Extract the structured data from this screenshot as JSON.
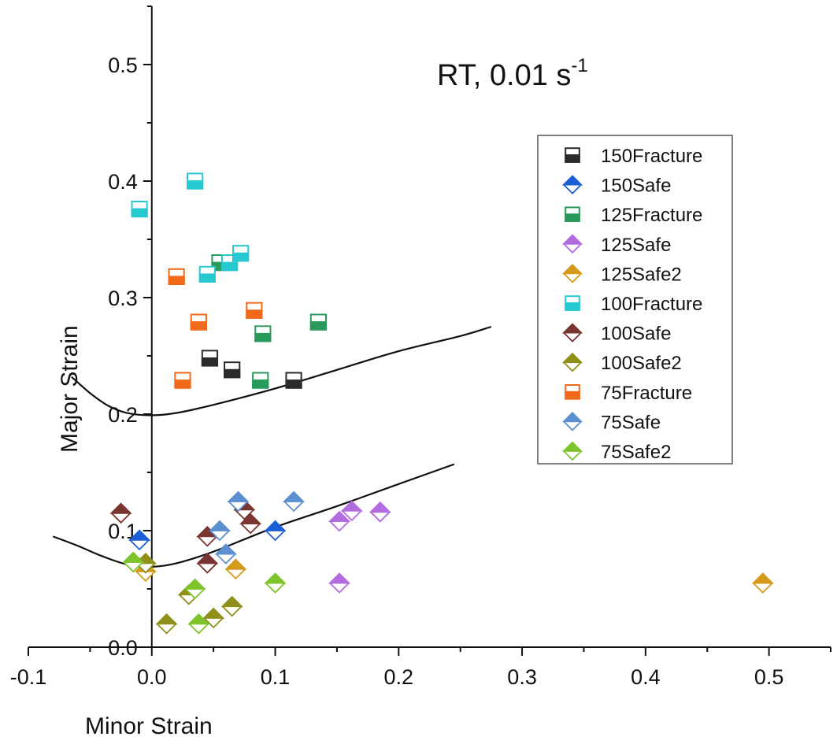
{
  "chart_data": {
    "type": "scatter",
    "title": "RT, 0.01 s",
    "title_superscript": "-1",
    "xlabel": "Minor Strain",
    "ylabel": "Major Strain",
    "xlim": [
      -0.1,
      0.55
    ],
    "ylim": [
      0.0,
      0.55
    ],
    "x_ticks": [
      -0.1,
      0.0,
      0.1,
      0.2,
      0.3,
      0.4,
      0.5
    ],
    "x_tick_labels": [
      "-0.1",
      "0.0",
      "0.1",
      "0.2",
      "0.3",
      "0.4",
      "0.5"
    ],
    "y_ticks": [
      0.0,
      0.1,
      0.2,
      0.3,
      0.4,
      0.5
    ],
    "y_tick_labels": [
      "0.0",
      "0.1",
      "0.2",
      "0.3",
      "0.4",
      "0.5"
    ],
    "grid": false,
    "legend_position": "right",
    "series": [
      {
        "name": "150Fracture",
        "marker": "square",
        "color": "#2b2b2b",
        "points": [
          [
            0.047,
            0.248
          ],
          [
            0.065,
            0.238
          ],
          [
            0.115,
            0.229
          ]
        ]
      },
      {
        "name": "150Safe",
        "marker": "triangle",
        "color": "#1a5fd6",
        "points": [
          [
            -0.01,
            0.092
          ],
          [
            0.1,
            0.1
          ]
        ]
      },
      {
        "name": "125Fracture",
        "marker": "square",
        "color": "#2a9a5c",
        "points": [
          [
            0.055,
            0.33
          ],
          [
            0.09,
            0.269
          ],
          [
            0.088,
            0.229
          ],
          [
            0.135,
            0.279
          ]
        ]
      },
      {
        "name": "125Safe",
        "marker": "diamond",
        "color": "#b36be0",
        "points": [
          [
            0.152,
            0.108
          ],
          [
            0.162,
            0.117
          ],
          [
            0.185,
            0.116
          ],
          [
            0.152,
            0.055
          ]
        ]
      },
      {
        "name": "125Safe2",
        "marker": "diamond",
        "color": "#d69a1a",
        "points": [
          [
            -0.005,
            0.065
          ],
          [
            0.068,
            0.067
          ],
          [
            0.495,
            0.055
          ]
        ]
      },
      {
        "name": "100Fracture",
        "marker": "square",
        "color": "#27c9d1",
        "points": [
          [
            -0.01,
            0.376
          ],
          [
            0.035,
            0.4
          ],
          [
            0.045,
            0.32
          ],
          [
            0.063,
            0.33
          ],
          [
            0.072,
            0.338
          ]
        ]
      },
      {
        "name": "100Safe",
        "marker": "triangle",
        "color": "#7a3530",
        "points": [
          [
            -0.025,
            0.115
          ],
          [
            0.045,
            0.095
          ],
          [
            0.075,
            0.118
          ],
          [
            0.08,
            0.106
          ],
          [
            0.045,
            0.072
          ]
        ]
      },
      {
        "name": "100Safe2",
        "marker": "diamond",
        "color": "#8f8f1a",
        "points": [
          [
            0.012,
            0.02
          ],
          [
            0.03,
            0.045
          ],
          [
            0.05,
            0.025
          ],
          [
            0.065,
            0.035
          ],
          [
            -0.005,
            0.072
          ]
        ]
      },
      {
        "name": "75Fracture",
        "marker": "square",
        "color": "#f06a1a",
        "points": [
          [
            0.02,
            0.318
          ],
          [
            0.038,
            0.279
          ],
          [
            0.025,
            0.229
          ],
          [
            0.083,
            0.289
          ]
        ]
      },
      {
        "name": "75Safe",
        "marker": "triangle",
        "color": "#5b8fd0",
        "points": [
          [
            0.055,
            0.1
          ],
          [
            0.07,
            0.125
          ],
          [
            0.06,
            0.08
          ],
          [
            0.115,
            0.125
          ]
        ]
      },
      {
        "name": "75Safe2",
        "marker": "diamond",
        "color": "#7cc42a",
        "points": [
          [
            -0.015,
            0.073
          ],
          [
            0.035,
            0.05
          ],
          [
            0.038,
            0.02
          ],
          [
            0.1,
            0.055
          ]
        ]
      }
    ],
    "curves": [
      {
        "points": [
          [
            -0.065,
            0.232
          ],
          [
            -0.05,
            0.218
          ],
          [
            -0.035,
            0.207
          ],
          [
            -0.02,
            0.201
          ],
          [
            0.0,
            0.199
          ],
          [
            0.02,
            0.201
          ],
          [
            0.05,
            0.208
          ],
          [
            0.1,
            0.222
          ],
          [
            0.15,
            0.238
          ],
          [
            0.2,
            0.254
          ],
          [
            0.25,
            0.267
          ],
          [
            0.275,
            0.275
          ]
        ]
      },
      {
        "points": [
          [
            -0.08,
            0.095
          ],
          [
            -0.06,
            0.087
          ],
          [
            -0.04,
            0.078
          ],
          [
            -0.02,
            0.071
          ],
          [
            0.0,
            0.069
          ],
          [
            0.02,
            0.072
          ],
          [
            0.05,
            0.082
          ],
          [
            0.1,
            0.103
          ],
          [
            0.15,
            0.121
          ],
          [
            0.2,
            0.14
          ],
          [
            0.245,
            0.157
          ]
        ]
      }
    ]
  }
}
